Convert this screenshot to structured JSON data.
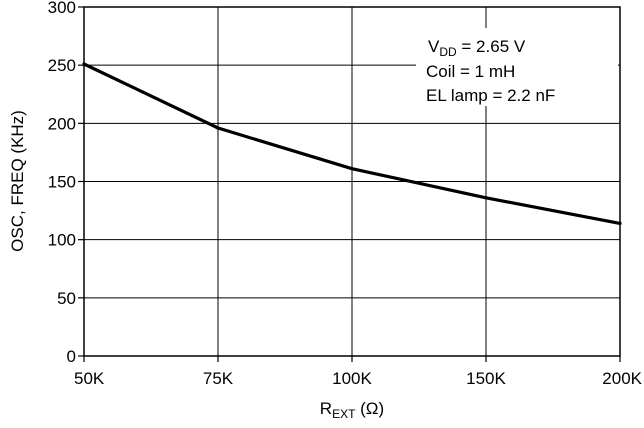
{
  "chart_data": {
    "type": "line",
    "title": "",
    "xlabel": {
      "main": "R",
      "sub": "EXT",
      "unit": " (Ω)"
    },
    "ylabel": "OSC, FREQ (KHz)",
    "x_categories": [
      "50K",
      "75K",
      "100K",
      "150K",
      "200K"
    ],
    "y_ticks": [
      "0",
      "50",
      "100",
      "150",
      "200",
      "250",
      "300"
    ],
    "ylim": [
      0,
      300
    ],
    "grid": true,
    "x_scale": "categorical-equal-spacing",
    "series": [
      {
        "points": [
          {
            "x": "50K",
            "y": 251
          },
          {
            "x": "75K",
            "y": 196
          },
          {
            "x": "100K",
            "y": 161
          },
          {
            "x": "150K",
            "y": 136
          },
          {
            "x": "200K",
            "y": 114
          }
        ]
      }
    ],
    "annotation": {
      "line1": {
        "main": "V",
        "sub": "DD",
        "rest": " = 2.65 V"
      },
      "line2": "Coil = 1 mH",
      "line3": "EL lamp = 2.2 nF"
    }
  }
}
